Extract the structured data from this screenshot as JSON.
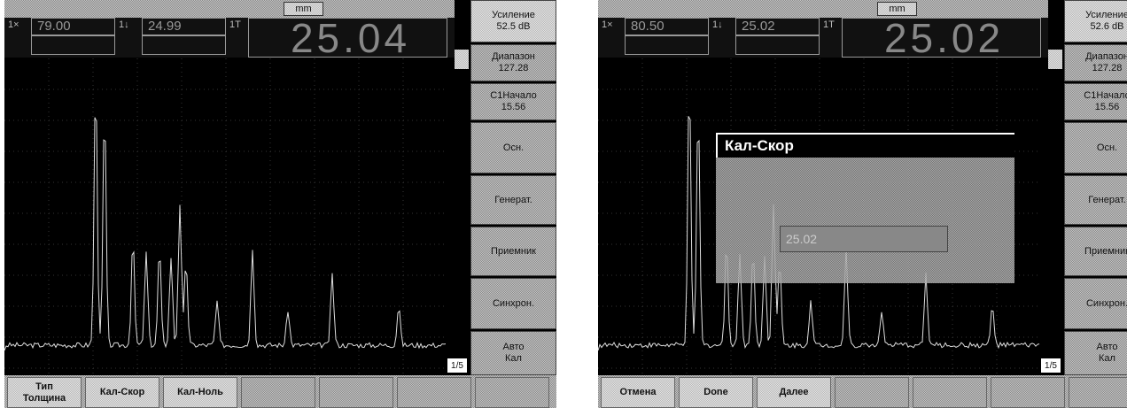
{
  "screens": [
    {
      "top_bar": {
        "unit": "mm"
      },
      "readings": [
        {
          "label": "1×",
          "value": "79.00"
        },
        {
          "label": "1↓",
          "value": "24.99"
        }
      ],
      "gate_label": "1T",
      "main_value": "25.04",
      "menu": [
        {
          "title": "Усиление",
          "value": "52.5 dB"
        },
        {
          "title": "Диапазон",
          "value": "127.28"
        },
        {
          "title": "C1Начало",
          "value": "15.56"
        },
        {
          "title": "Осн."
        },
        {
          "title": "Генерат."
        },
        {
          "title": "Приемник"
        },
        {
          "title": "Синхрон."
        },
        {
          "title": "Авто\nКал"
        }
      ],
      "page": "1/5",
      "softkeys": [
        "Тип\nТолщина",
        "Кал-Скор",
        "Кал-Ноль"
      ]
    },
    {
      "top_bar": {
        "unit": "mm"
      },
      "readings": [
        {
          "label": "1×",
          "value": "80.50"
        },
        {
          "label": "1↓",
          "value": "25.02"
        }
      ],
      "gate_label": "1T",
      "main_value": "25.02",
      "menu": [
        {
          "title": "Усиление",
          "value": "52.6 dB"
        },
        {
          "title": "Диапазон",
          "value": "127.28"
        },
        {
          "title": "C1Начало",
          "value": "15.56"
        },
        {
          "title": "Осн."
        },
        {
          "title": "Генерат."
        },
        {
          "title": "Приемник"
        },
        {
          "title": "Синхрон."
        },
        {
          "title": "Авто\nКал"
        }
      ],
      "page": "1/5",
      "dialog": {
        "title": "Кал-Скор",
        "value": "25.02"
      },
      "softkeys": [
        "Отмена",
        "Done",
        "Далее"
      ]
    }
  ]
}
